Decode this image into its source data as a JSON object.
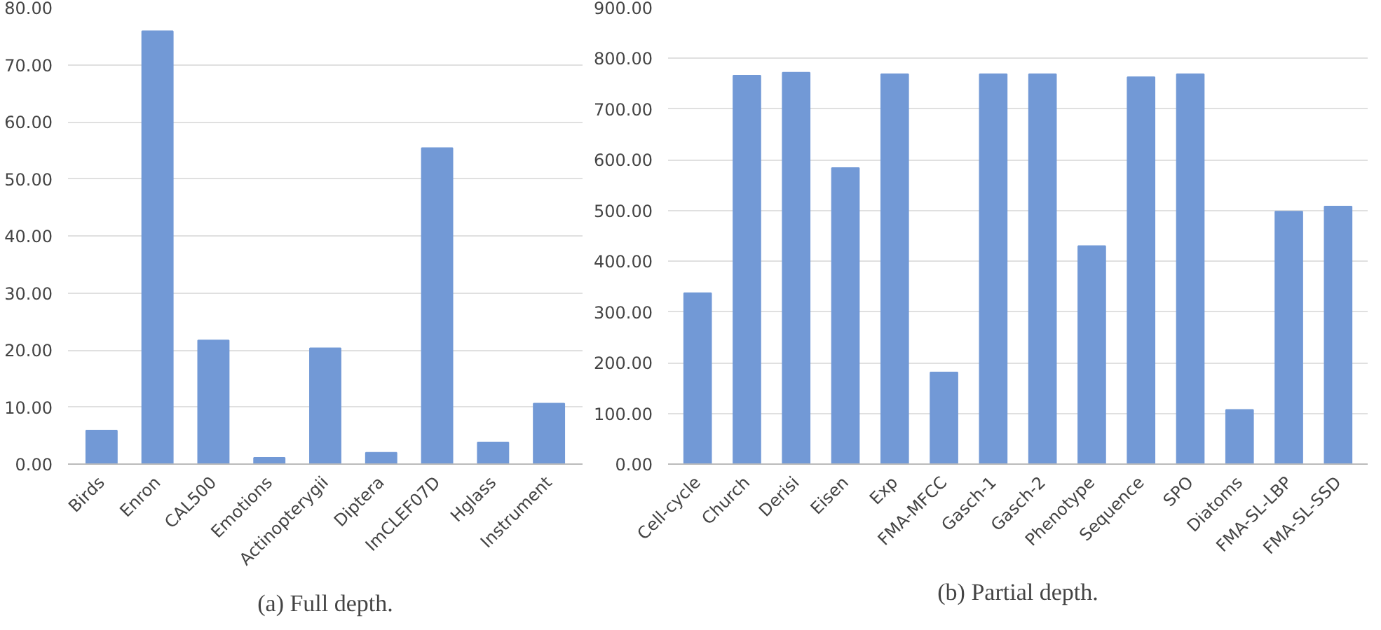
{
  "chart_data": [
    {
      "type": "bar",
      "categories": [
        "Birds",
        "Enron",
        "CAL500",
        "Emotions",
        "Actinopterygii",
        "Diptera",
        "ImCLEF07D",
        "Hglass",
        "Instrument"
      ],
      "values": [
        5.9,
        75.9,
        21.7,
        1.1,
        20.3,
        2.0,
        55.4,
        3.8,
        10.6
      ],
      "color": "#7299d6",
      "ylim": [
        0,
        80
      ],
      "yticks": [
        {
          "value": 0,
          "label": "0.00"
        },
        {
          "value": 10,
          "label": "10.00"
        },
        {
          "value": 20,
          "label": "20.00"
        },
        {
          "value": 30,
          "label": "30.00"
        },
        {
          "value": 40,
          "label": "40.00"
        },
        {
          "value": 50,
          "label": "50.00"
        },
        {
          "value": 60,
          "label": "60.00"
        },
        {
          "value": 70,
          "label": "70.00"
        },
        {
          "value": 80,
          "label": "80.00"
        }
      ],
      "grid": "y",
      "annotations": [
        "(a) Full depth."
      ]
    },
    {
      "type": "bar",
      "categories": [
        "Cell-cycle",
        "Church",
        "Derisi",
        "Eisen",
        "Exp",
        "FMA-MFCC",
        "Gasch-1",
        "Gasch-2",
        "Phenotype",
        "Sequence",
        "SPO",
        "Diatoms",
        "FMA-SL-LBP",
        "FMA-SL-SSD"
      ],
      "values": [
        337,
        766,
        772,
        584,
        769,
        181,
        769,
        769,
        430,
        763,
        769,
        107,
        498,
        508
      ],
      "color": "#7299d6",
      "ylim": [
        0,
        900
      ],
      "yticks": [
        {
          "value": 0,
          "label": "0.00"
        },
        {
          "value": 100,
          "label": "100.00"
        },
        {
          "value": 200,
          "label": "200.00"
        },
        {
          "value": 300,
          "label": "300.00"
        },
        {
          "value": 400,
          "label": "400.00"
        },
        {
          "value": 500,
          "label": "500.00"
        },
        {
          "value": 600,
          "label": "600.00"
        },
        {
          "value": 700,
          "label": "700.00"
        },
        {
          "value": 800,
          "label": "800.00"
        },
        {
          "value": 900,
          "label": "900.00"
        }
      ],
      "grid": "y",
      "annotations": [
        "(b) Partial depth."
      ]
    }
  ]
}
